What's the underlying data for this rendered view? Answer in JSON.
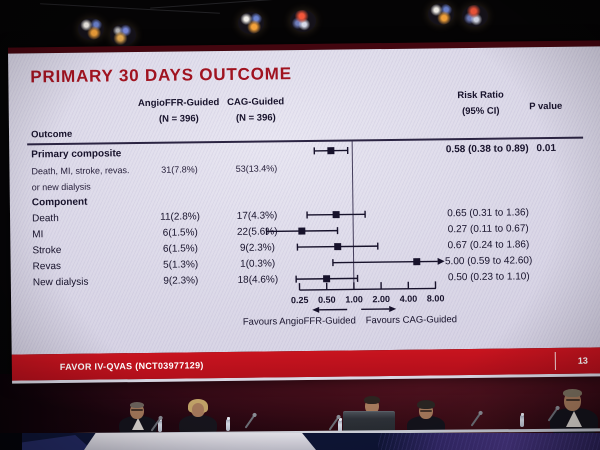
{
  "slide": {
    "title": "PRIMARY 30 DAYS OUTCOME",
    "header": {
      "outcome": "Outcome",
      "col1_line1": "AngioFFR-Guided",
      "col1_line2": "(N = 396)",
      "col2_line1": "CAG-Guided",
      "col2_line2": "(N = 396)",
      "rr_line1": "Risk Ratio",
      "rr_line2": "(95% CI)",
      "pvalue": "P value"
    },
    "lines": [
      {
        "label": "Primary composite",
        "bold": true,
        "rr": "0.58 (0.38 to 0.89)",
        "p": "0.01"
      },
      {
        "label": "Death, MI, stroke, revas.",
        "small": true,
        "angio": "31(7.8%)",
        "cag": "53(13.4%)"
      },
      {
        "label": "or new dialysis",
        "small": true
      },
      {
        "label": "Component",
        "bold": true
      },
      {
        "label": "Death",
        "angio": "11(2.8%)",
        "cag": "17(4.3%)",
        "rr": "0.65 (0.31 to 1.36)"
      },
      {
        "label": "MI",
        "angio": "6(1.5%)",
        "cag": "22(5.6%)",
        "rr": "0.27 (0.11 to 0.67)"
      },
      {
        "label": "Stroke",
        "angio": "6(1.5%)",
        "cag": "9(2.3%)",
        "rr": "0.67 (0.24 to 1.86)"
      },
      {
        "label": "Revas",
        "angio": "5(1.3%)",
        "cag": "1(0.3%)",
        "rr": "5.00 (0.59 to 42.60)"
      },
      {
        "label": "New dialysis",
        "angio": "9(2.3%)",
        "cag": "18(4.6%)",
        "rr": "0.50 (0.23 to 1.10)"
      }
    ],
    "footer": {
      "trial": "FAVOR IV-QVAS (NCT03977129)",
      "page": "13"
    }
  },
  "chart_data": {
    "type": "scatter",
    "subtype": "forest-plot",
    "title": "PRIMARY 30 DAYS OUTCOME",
    "x_scale": "log2",
    "x_ticks": [
      0.25,
      0.5,
      1.0,
      2.0,
      4.0,
      8.0
    ],
    "x_tick_labels": [
      "0.25",
      "0.50",
      "1.00",
      "2.00",
      "4.00",
      "8.00"
    ],
    "xlim": [
      0.25,
      8.0
    ],
    "reference_line": 1.0,
    "favours_left": "Favours AngioFFR-Guided",
    "favours_right": "Favours CAG-Guided",
    "points": [
      {
        "label": "Primary composite",
        "rr": 0.58,
        "ci_low": 0.38,
        "ci_high": 0.89,
        "p_value": 0.01,
        "angio_ffr_n": 31,
        "angio_ffr_pct": 7.8,
        "cag_n": 53,
        "cag_pct": 13.4
      },
      {
        "label": "Death",
        "rr": 0.65,
        "ci_low": 0.31,
        "ci_high": 1.36,
        "angio_ffr_n": 11,
        "angio_ffr_pct": 2.8,
        "cag_n": 17,
        "cag_pct": 4.3
      },
      {
        "label": "MI",
        "rr": 0.27,
        "ci_low": 0.11,
        "ci_high": 0.67,
        "angio_ffr_n": 6,
        "angio_ffr_pct": 1.5,
        "cag_n": 22,
        "cag_pct": 5.6
      },
      {
        "label": "Stroke",
        "rr": 0.67,
        "ci_low": 0.24,
        "ci_high": 1.86,
        "angio_ffr_n": 6,
        "angio_ffr_pct": 1.5,
        "cag_n": 9,
        "cag_pct": 2.3
      },
      {
        "label": "Revas",
        "rr": 5.0,
        "ci_low": 0.59,
        "ci_high": 42.6,
        "angio_ffr_n": 5,
        "angio_ffr_pct": 1.3,
        "cag_n": 1,
        "cag_pct": 0.3
      },
      {
        "label": "New dialysis",
        "rr": 0.5,
        "ci_low": 0.23,
        "ci_high": 1.1,
        "angio_ffr_n": 9,
        "angio_ffr_pct": 2.3,
        "cag_n": 18,
        "cag_pct": 4.6
      }
    ]
  },
  "colors": {
    "title_red": "#a01320",
    "footer_red": "#c8141f",
    "slide_bg": "#dcd9e8",
    "ink": "#17122b"
  }
}
